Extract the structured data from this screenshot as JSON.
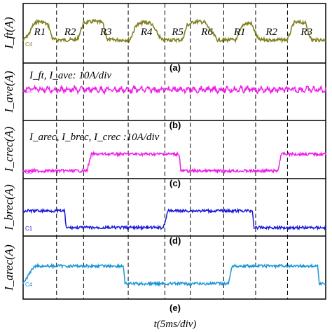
{
  "chart_data": {
    "type": "line",
    "x_label": "t(5ms/div)",
    "panels": [
      {
        "id": "a",
        "label": "(a)",
        "ylabel": "I_ft(A)",
        "channel": "C4",
        "color": "#808020",
        "regions": [
          "R1",
          "R2",
          "R3",
          "R4",
          "R5",
          "R6",
          "R1",
          "R2",
          "R3"
        ],
        "annotation": ""
      },
      {
        "id": "b",
        "label": "(b)",
        "ylabel": "I_ave(A)",
        "channel": "C2",
        "color": "#ee1ee8",
        "annotation": "I_ft, I_ave: 10A/div"
      },
      {
        "id": "c",
        "label": "(c)",
        "ylabel": "I_crec(A)",
        "channel": "C3",
        "color": "#ee1ee8",
        "annotation": "I_arec, I_brec, I_crec :10A/div"
      },
      {
        "id": "d",
        "label": "(d)",
        "ylabel": "I_brec(A)",
        "channel": "C1",
        "color": "#1a1ad8",
        "annotation": ""
      },
      {
        "id": "e",
        "label": "(e)",
        "ylabel": "I_arec(A)",
        "channel": "C4",
        "color": "#1c96d6",
        "annotation": ""
      }
    ],
    "waveforms": {
      "a": [
        [
          0,
          0.1
        ],
        [
          0.4,
          0.35
        ],
        [
          0.6,
          0.6
        ],
        [
          0.9,
          0.75
        ],
        [
          1.3,
          0.72
        ],
        [
          1.6,
          0.6
        ],
        [
          1.85,
          0.15
        ],
        [
          2.1,
          0.12
        ],
        [
          3.4,
          0.12
        ],
        [
          3.8,
          0.7
        ],
        [
          4.5,
          0.75
        ],
        [
          5.0,
          0.7
        ],
        [
          5.3,
          0.12
        ],
        [
          6.7,
          0.12
        ],
        [
          7.1,
          0.62
        ],
        [
          7.6,
          0.72
        ],
        [
          8.0,
          0.7
        ],
        [
          8.7,
          0.12
        ],
        [
          10.0,
          0.12
        ],
        [
          10.3,
          0.62
        ],
        [
          10.8,
          0.75
        ],
        [
          11.4,
          0.72
        ],
        [
          12.2,
          0.12
        ],
        [
          13.4,
          0.12
        ],
        [
          13.8,
          0.65
        ],
        [
          14.3,
          0.7
        ],
        [
          14.8,
          0.12
        ],
        [
          16.6,
          0.12
        ],
        [
          17.0,
          0.7
        ],
        [
          17.7,
          0.72
        ],
        [
          18.1,
          0.12
        ],
        [
          19.0,
          0.12
        ]
      ],
      "b": [
        [
          0,
          0
        ],
        [
          19.0,
          0
        ]
      ],
      "c": [
        [
          0,
          0
        ],
        [
          4.0,
          0
        ],
        [
          4.3,
          0.6
        ],
        [
          9.8,
          0.6
        ],
        [
          9.9,
          0
        ],
        [
          16.0,
          0
        ],
        [
          16.2,
          0.6
        ],
        [
          19.0,
          0.6
        ]
      ],
      "d": [
        [
          0,
          0.6
        ],
        [
          2.6,
          0.6
        ],
        [
          2.7,
          0
        ],
        [
          8.8,
          0
        ],
        [
          9.1,
          0.6
        ],
        [
          14.4,
          0.6
        ],
        [
          14.5,
          0
        ],
        [
          19.0,
          0
        ]
      ],
      "e": [
        [
          0,
          0
        ],
        [
          0.7,
          0.6
        ],
        [
          6.3,
          0.6
        ],
        [
          6.4,
          0
        ],
        [
          12.9,
          0
        ],
        [
          13.1,
          0.6
        ],
        [
          18.5,
          0.6
        ],
        [
          18.6,
          0
        ],
        [
          19.0,
          0
        ]
      ]
    },
    "dashed_divisions": [
      2.1,
      3.8,
      6.6,
      8.9,
      10.5,
      12.6,
      14.6,
      16.6
    ],
    "x_range": [
      0,
      19
    ],
    "grid": "dashed vertical region dividers"
  }
}
